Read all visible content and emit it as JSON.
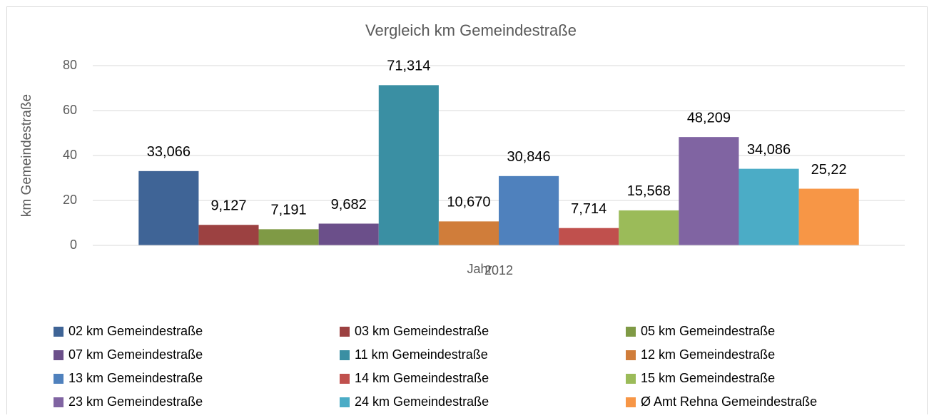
{
  "chart_data": {
    "type": "bar",
    "title": "Vergleich km Gemeindestraße",
    "x_label": "Jahr",
    "y_label": "km Gemeindestraße",
    "categories": [
      "2012"
    ],
    "ylim": [
      0,
      80
    ],
    "yticks": [
      0,
      20,
      40,
      60,
      80
    ],
    "grid": true,
    "series": [
      {
        "name": "02 km Gemeindestraße",
        "color": "#3f6496",
        "values": [
          33.066
        ],
        "value_labels": [
          "33,066"
        ]
      },
      {
        "name": "03 km Gemeindestraße",
        "color": "#9c4141",
        "values": [
          9.127
        ],
        "value_labels": [
          "9,127"
        ]
      },
      {
        "name": "05 km Gemeindestraße",
        "color": "#7f9a45",
        "values": [
          7.191
        ],
        "value_labels": [
          "7,191"
        ]
      },
      {
        "name": "07 km Gemeindestraße",
        "color": "#6b4f8a",
        "values": [
          9.682
        ],
        "value_labels": [
          "9,682"
        ]
      },
      {
        "name": "11 km Gemeindestraße",
        "color": "#3a8fa3",
        "values": [
          71.314
        ],
        "value_labels": [
          "71,314"
        ]
      },
      {
        "name": "12 km Gemeindestraße",
        "color": "#d07d3a",
        "values": [
          10.67
        ],
        "value_labels": [
          "10,670"
        ]
      },
      {
        "name": "13 km Gemeindestraße",
        "color": "#4f81bd",
        "values": [
          30.846
        ],
        "value_labels": [
          "30,846"
        ]
      },
      {
        "name": "14 km Gemeindestraße",
        "color": "#c0504d",
        "values": [
          7.714
        ],
        "value_labels": [
          "7,714"
        ]
      },
      {
        "name": "15 km Gemeindestraße",
        "color": "#9bbb59",
        "values": [
          15.568
        ],
        "value_labels": [
          "15,568"
        ]
      },
      {
        "name": "23 km Gemeindestraße",
        "color": "#8064a2",
        "values": [
          48.209
        ],
        "value_labels": [
          "48,209"
        ]
      },
      {
        "name": "24 km Gemeindestraße",
        "color": "#4bacc6",
        "values": [
          34.086
        ],
        "value_labels": [
          "34,086"
        ]
      },
      {
        "name": "Ø Amt Rehna Gemeindestraße",
        "color": "#f79646",
        "values": [
          25.22
        ],
        "value_labels": [
          "25,22"
        ]
      }
    ]
  }
}
